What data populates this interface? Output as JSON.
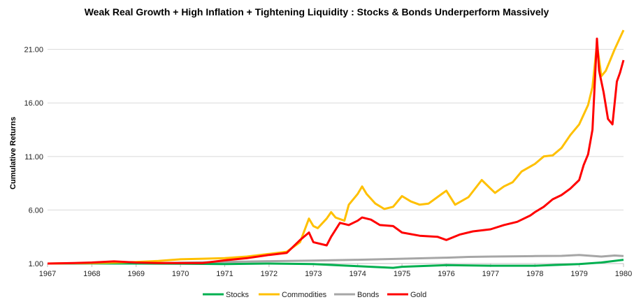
{
  "chart_data": {
    "type": "line",
    "title": "Weak Real Growth + High Inflation + Tightening Liquidity : Stocks & Bonds Underperform Massively",
    "ylabel": "Cumulative Returns",
    "xlabel": "",
    "xlim": [
      1967,
      1980
    ],
    "ylim": [
      1,
      23
    ],
    "y_ticks": [
      "1.00",
      "6.00",
      "11.00",
      "16.00",
      "21.00"
    ],
    "x_ticks": [
      "1967",
      "1968",
      "1969",
      "1970",
      "1971",
      "1972",
      "1973",
      "1974",
      "1975",
      "1976",
      "1977",
      "1978",
      "1979",
      "1980"
    ],
    "legend_position": "bottom",
    "series": [
      {
        "name": "Stocks",
        "color": "#00b050",
        "points": [
          [
            1967,
            1.0
          ],
          [
            1968,
            1.02
          ],
          [
            1969,
            1.0
          ],
          [
            1970,
            0.98
          ],
          [
            1971,
            0.95
          ],
          [
            1972,
            1.0
          ],
          [
            1973,
            0.95
          ],
          [
            1974,
            0.75
          ],
          [
            1974.8,
            0.6
          ],
          [
            1975,
            0.7
          ],
          [
            1976,
            0.85
          ],
          [
            1977,
            0.8
          ],
          [
            1978,
            0.8
          ],
          [
            1979,
            0.95
          ],
          [
            1979.5,
            1.1
          ],
          [
            1980,
            1.35
          ]
        ]
      },
      {
        "name": "Commodities",
        "color": "#ffc000",
        "points": [
          [
            1967,
            1.0
          ],
          [
            1968,
            1.05
          ],
          [
            1969,
            1.15
          ],
          [
            1969.5,
            1.25
          ],
          [
            1970,
            1.4
          ],
          [
            1970.5,
            1.45
          ],
          [
            1971,
            1.5
          ],
          [
            1971.5,
            1.65
          ],
          [
            1972,
            1.9
          ],
          [
            1972.4,
            2.1
          ],
          [
            1972.7,
            3.0
          ],
          [
            1972.9,
            5.2
          ],
          [
            1973,
            4.5
          ],
          [
            1973.1,
            4.3
          ],
          [
            1973.3,
            5.2
          ],
          [
            1973.4,
            5.8
          ],
          [
            1973.5,
            5.3
          ],
          [
            1973.7,
            5.0
          ],
          [
            1973.8,
            6.5
          ],
          [
            1974,
            7.5
          ],
          [
            1974.1,
            8.2
          ],
          [
            1974.2,
            7.5
          ],
          [
            1974.4,
            6.6
          ],
          [
            1974.6,
            6.1
          ],
          [
            1974.8,
            6.3
          ],
          [
            1975,
            7.3
          ],
          [
            1975.2,
            6.8
          ],
          [
            1975.4,
            6.5
          ],
          [
            1975.6,
            6.6
          ],
          [
            1975.9,
            7.5
          ],
          [
            1976,
            7.8
          ],
          [
            1976.2,
            6.5
          ],
          [
            1976.5,
            7.2
          ],
          [
            1976.8,
            8.8
          ],
          [
            1977,
            8.0
          ],
          [
            1977.1,
            7.6
          ],
          [
            1977.3,
            8.2
          ],
          [
            1977.5,
            8.6
          ],
          [
            1977.7,
            9.6
          ],
          [
            1978,
            10.3
          ],
          [
            1978.2,
            11.0
          ],
          [
            1978.4,
            11.1
          ],
          [
            1978.6,
            11.8
          ],
          [
            1978.8,
            13.0
          ],
          [
            1979,
            14.0
          ],
          [
            1979.2,
            15.8
          ],
          [
            1979.3,
            17.5
          ],
          [
            1979.4,
            21.5
          ],
          [
            1979.5,
            18.5
          ],
          [
            1979.6,
            19.0
          ],
          [
            1979.7,
            20.0
          ],
          [
            1979.8,
            21.0
          ],
          [
            1980,
            22.8
          ]
        ]
      },
      {
        "name": "Bonds",
        "color": "#a6a6a6",
        "points": [
          [
            1967,
            1.0
          ],
          [
            1968,
            1.0
          ],
          [
            1969,
            1.02
          ],
          [
            1970,
            1.08
          ],
          [
            1971,
            1.15
          ],
          [
            1972,
            1.22
          ],
          [
            1973,
            1.28
          ],
          [
            1974,
            1.35
          ],
          [
            1975,
            1.45
          ],
          [
            1976,
            1.55
          ],
          [
            1976.5,
            1.62
          ],
          [
            1977,
            1.65
          ],
          [
            1978,
            1.7
          ],
          [
            1978.6,
            1.72
          ],
          [
            1979,
            1.8
          ],
          [
            1979.5,
            1.65
          ],
          [
            1979.8,
            1.75
          ],
          [
            1980,
            1.7
          ]
        ]
      },
      {
        "name": "Gold",
        "color": "#ff0000",
        "points": [
          [
            1967,
            1.0
          ],
          [
            1967.6,
            1.05
          ],
          [
            1968,
            1.1
          ],
          [
            1968.5,
            1.2
          ],
          [
            1969,
            1.1
          ],
          [
            1969.5,
            1.05
          ],
          [
            1970,
            1.05
          ],
          [
            1970.5,
            1.05
          ],
          [
            1971,
            1.3
          ],
          [
            1971.5,
            1.5
          ],
          [
            1972,
            1.8
          ],
          [
            1972.4,
            2.0
          ],
          [
            1972.7,
            3.2
          ],
          [
            1972.9,
            3.9
          ],
          [
            1973,
            3.0
          ],
          [
            1973.3,
            2.7
          ],
          [
            1973.4,
            3.5
          ],
          [
            1973.6,
            4.8
          ],
          [
            1973.8,
            4.6
          ],
          [
            1974,
            5.0
          ],
          [
            1974.1,
            5.3
          ],
          [
            1974.3,
            5.1
          ],
          [
            1974.5,
            4.6
          ],
          [
            1974.8,
            4.5
          ],
          [
            1975,
            3.9
          ],
          [
            1975.4,
            3.6
          ],
          [
            1975.8,
            3.5
          ],
          [
            1976,
            3.2
          ],
          [
            1976.3,
            3.7
          ],
          [
            1976.6,
            4.0
          ],
          [
            1977,
            4.2
          ],
          [
            1977.3,
            4.6
          ],
          [
            1977.6,
            4.9
          ],
          [
            1977.9,
            5.5
          ],
          [
            1978,
            5.8
          ],
          [
            1978.2,
            6.3
          ],
          [
            1978.4,
            7.0
          ],
          [
            1978.6,
            7.4
          ],
          [
            1978.8,
            8.0
          ],
          [
            1979,
            8.8
          ],
          [
            1979.1,
            10.2
          ],
          [
            1979.2,
            11.2
          ],
          [
            1979.3,
            13.5
          ],
          [
            1979.4,
            22.0
          ],
          [
            1979.45,
            19.0
          ],
          [
            1979.55,
            17.0
          ],
          [
            1979.65,
            14.5
          ],
          [
            1979.75,
            14.0
          ],
          [
            1979.85,
            18.0
          ],
          [
            1979.92,
            18.8
          ],
          [
            1980,
            20.0
          ]
        ]
      }
    ]
  }
}
